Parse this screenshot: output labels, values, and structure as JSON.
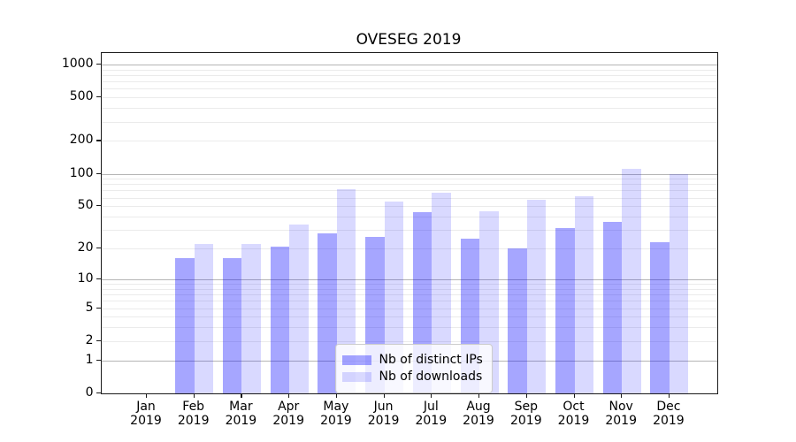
{
  "title": "OVESEG 2019",
  "legend": {
    "position": "lower center",
    "items": [
      {
        "label": "Nb of distinct IPs",
        "color": "rgba(0,0,255,0.35)"
      },
      {
        "label": "Nb of downloads",
        "color": "rgba(0,0,255,0.15)"
      }
    ]
  },
  "chart_data": {
    "type": "bar",
    "title": "OVESEG 2019",
    "categories": [
      "Jan",
      "Feb",
      "Mar",
      "Apr",
      "May",
      "Jun",
      "Jul",
      "Aug",
      "Sep",
      "Oct",
      "Nov",
      "Dec"
    ],
    "x_tick_year": "2019",
    "series": [
      {
        "name": "Nb of distinct IPs",
        "color": "rgba(0,0,255,0.35)",
        "values": [
          0,
          16,
          16,
          21,
          28,
          26,
          44,
          25,
          20,
          31,
          36,
          23
        ]
      },
      {
        "name": "Nb of downloads",
        "color": "rgba(0,0,255,0.15)",
        "values": [
          0,
          22,
          22,
          34,
          72,
          55,
          67,
          45,
          57,
          62,
          110,
          100
        ]
      }
    ],
    "xlabel": "",
    "ylabel": "",
    "yscale": "log(1+y)",
    "ylim": [
      0,
      1272
    ],
    "y_tick_values": [
      0,
      1,
      2,
      5,
      10,
      20,
      50,
      100,
      200,
      500,
      1000
    ],
    "y_major_gridlines": [
      1,
      10,
      100,
      1000
    ],
    "grid": true,
    "legend_position": "lower center"
  }
}
